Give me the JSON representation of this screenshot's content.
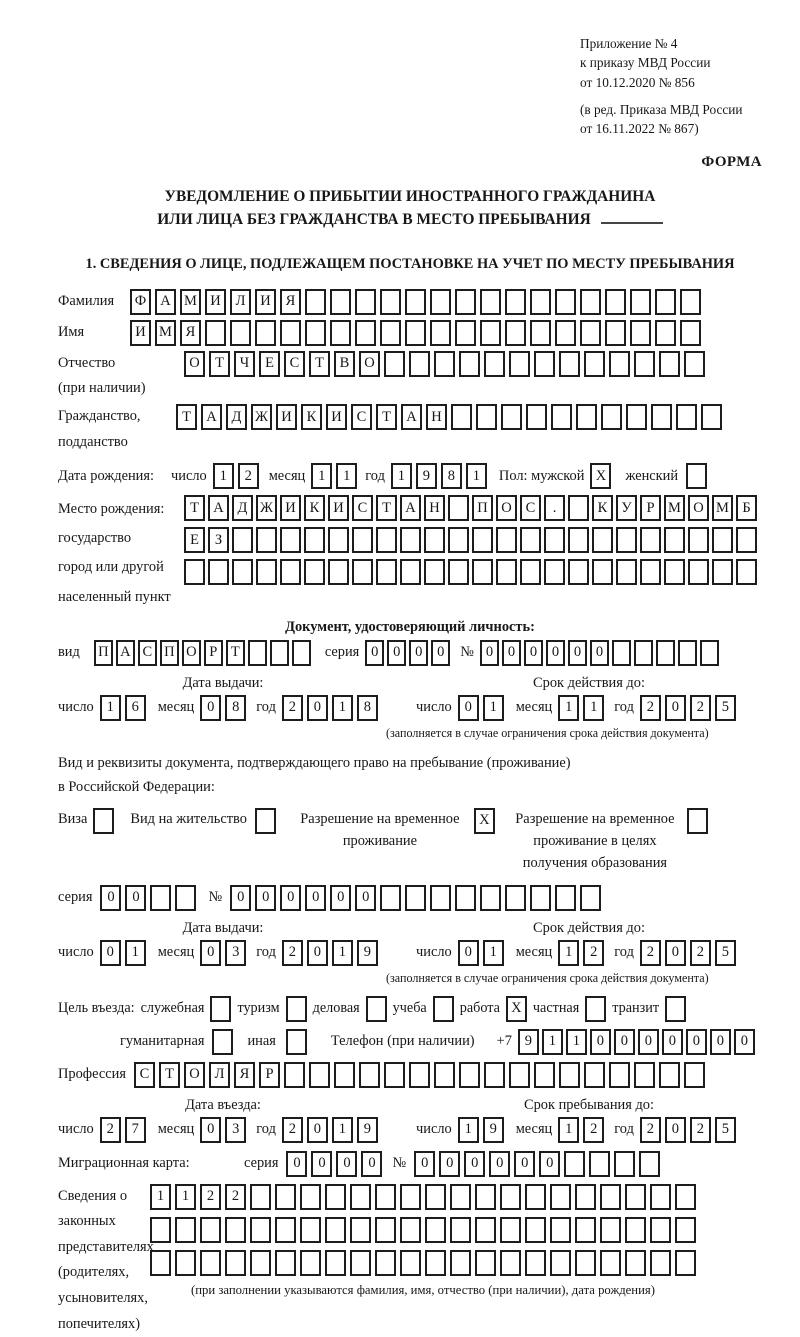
{
  "header": {
    "ref_lines": [
      "Приложение № 4",
      "к приказу МВД России",
      "от 10.12.2020 № 856"
    ],
    "ed_lines": [
      "(в ред. Приказа МВД России",
      "от 16.11.2022 № 867)"
    ],
    "form_label": "ФОРМА"
  },
  "title": {
    "line1": "УВЕДОМЛЕНИЕ О ПРИБЫТИИ ИНОСТРАННОГО ГРАЖДАНИНА",
    "line2": "ИЛИ ЛИЦА БЕЗ ГРАЖДАНСТВА В МЕСТО ПРЕБЫВАНИЯ"
  },
  "section1": {
    "heading": "1. СВЕДЕНИЯ О ЛИЦЕ, ПОДЛЕЖАЩЕМ ПОСТАНОВКЕ НА УЧЕТ ПО МЕСТУ ПРЕБЫВАНИЯ"
  },
  "labels": {
    "day": "число",
    "month": "месяц",
    "year": "год",
    "series": "серия",
    "number": "№",
    "issue_title": "Дата выдачи:",
    "expiry_title": "Срок действия до:",
    "limit_note": "(заполняется в случае ограничения срока действия документа)",
    "entry_title": "Дата въезда:",
    "stay_title": "Срок пребывания до:"
  },
  "person": {
    "surname": {
      "label": "Фамилия",
      "cells": {
        "count": 23,
        "value": "ФАМИЛИЯ"
      }
    },
    "name": {
      "label": "Имя",
      "cells": {
        "count": 23,
        "value": "ИМЯ"
      }
    },
    "patronymic": {
      "label": "Отчество",
      "label2": "(при наличии)",
      "cells": {
        "count": 21,
        "value": "ОТЧЕСТВО"
      }
    },
    "citizenship": {
      "label": "Гражданство,",
      "label2": "подданство",
      "cells": {
        "count": 22,
        "value": "ТАДЖИКИСТАН"
      }
    },
    "birth": {
      "label": "Дата рождения:",
      "day": {
        "count": 2,
        "value": "12"
      },
      "month": {
        "count": 2,
        "value": "11"
      },
      "year": {
        "count": 4,
        "value": "1981"
      },
      "sex_label": "Пол: мужской",
      "male": {
        "count": 1,
        "value": "X"
      },
      "female_label": "женский",
      "female": {
        "count": 1,
        "value": ""
      }
    },
    "birthplace": {
      "label1": "Место рождения:",
      "label2": "государство",
      "label3": "город или другой",
      "label4": "населенный пункт",
      "rows": [
        {
          "count": 24,
          "value": "ТАДЖИКИСТАН ПОС. КУРМОМБ"
        },
        {
          "count": 24,
          "value": "ЕЗ"
        },
        {
          "count": 24,
          "value": ""
        }
      ]
    },
    "profession": {
      "label": "Профессия",
      "cells": {
        "count": 23,
        "value": "СТОЛЯР"
      }
    }
  },
  "identity_doc": {
    "section_title": "Документ, удостоверяющий личность:",
    "type_label": "вид",
    "type": {
      "count": 10,
      "value": "ПАСПОРТ"
    },
    "series": {
      "count": 4,
      "value": "0000"
    },
    "number": {
      "count": 11,
      "value": "000000"
    }
  },
  "doc_dates": {
    "issue": {
      "day": {
        "count": 2,
        "value": "16"
      },
      "month": {
        "count": 2,
        "value": "08"
      },
      "year": {
        "count": 4,
        "value": "2018"
      }
    },
    "expiry": {
      "day": {
        "count": 2,
        "value": "01"
      },
      "month": {
        "count": 2,
        "value": "11"
      },
      "year": {
        "count": 4,
        "value": "2025"
      }
    }
  },
  "permit_doc": {
    "intro1": "Вид и реквизиты документа, подтверждающего право на пребывание (проживание)",
    "intro2": "в Российской Федерации:",
    "options": [
      {
        "label": "Виза",
        "box": {
          "count": 1,
          "value": ""
        }
      },
      {
        "label": "Вид на жительство",
        "box": {
          "count": 1,
          "value": ""
        }
      },
      {
        "label": "Разрешение на временное проживание",
        "box": {
          "count": 1,
          "value": "X"
        }
      },
      {
        "label": "Разрешение на временное проживание в целях получения образования",
        "box": {
          "count": 1,
          "value": ""
        }
      }
    ],
    "series": {
      "count": 4,
      "value": "00"
    },
    "number": {
      "count": 15,
      "value": "000000"
    }
  },
  "permit_dates": {
    "issue": {
      "day": {
        "count": 2,
        "value": "01"
      },
      "month": {
        "count": 2,
        "value": "03"
      },
      "year": {
        "count": 4,
        "value": "2019"
      }
    },
    "expiry": {
      "day": {
        "count": 2,
        "value": "01"
      },
      "month": {
        "count": 2,
        "value": "12"
      },
      "year": {
        "count": 4,
        "value": "2025"
      }
    }
  },
  "purpose": {
    "label": "Цель въезда:",
    "row1": [
      {
        "label": "служебная",
        "box": {
          "count": 1,
          "value": ""
        }
      },
      {
        "label": "туризм",
        "box": {
          "count": 1,
          "value": ""
        }
      },
      {
        "label": "деловая",
        "box": {
          "count": 1,
          "value": ""
        }
      },
      {
        "label": "учеба",
        "box": {
          "count": 1,
          "value": ""
        }
      },
      {
        "label": "работа",
        "box": {
          "count": 1,
          "value": "X"
        }
      },
      {
        "label": "частная",
        "box": {
          "count": 1,
          "value": ""
        }
      },
      {
        "label": "транзит",
        "box": {
          "count": 1,
          "value": ""
        }
      }
    ],
    "row2": [
      {
        "label": "гуманитарная",
        "box": {
          "count": 1,
          "value": ""
        }
      },
      {
        "label": "иная",
        "box": {
          "count": 1,
          "value": ""
        }
      }
    ],
    "phone_label": "Телефон (при наличии)",
    "phone_prefix": "+7",
    "phone": {
      "count": 10,
      "value": "9110000000"
    }
  },
  "entry_dates": {
    "issue": {
      "day": {
        "count": 2,
        "value": "27"
      },
      "month": {
        "count": 2,
        "value": "03"
      },
      "year": {
        "count": 4,
        "value": "2019"
      }
    },
    "expiry": {
      "day": {
        "count": 2,
        "value": "19"
      },
      "month": {
        "count": 2,
        "value": "12"
      },
      "year": {
        "count": 4,
        "value": "2025"
      }
    }
  },
  "migration_card": {
    "label": "Миграционная карта:",
    "series": {
      "count": 4,
      "value": "0000"
    },
    "number": {
      "count": 10,
      "value": "000000"
    }
  },
  "legal_reps": {
    "label_lines": [
      "Сведения о",
      "законных",
      "представителях",
      "(родителях,",
      "усыновителях,",
      "попечителях)"
    ],
    "rows": [
      {
        "count": 22,
        "value": "1122"
      },
      {
        "count": 22,
        "value": ""
      },
      {
        "count": 22,
        "value": ""
      }
    ],
    "note": "(при заполнении указываются фамилия, имя, отчество (при наличии), дата рождения)"
  }
}
